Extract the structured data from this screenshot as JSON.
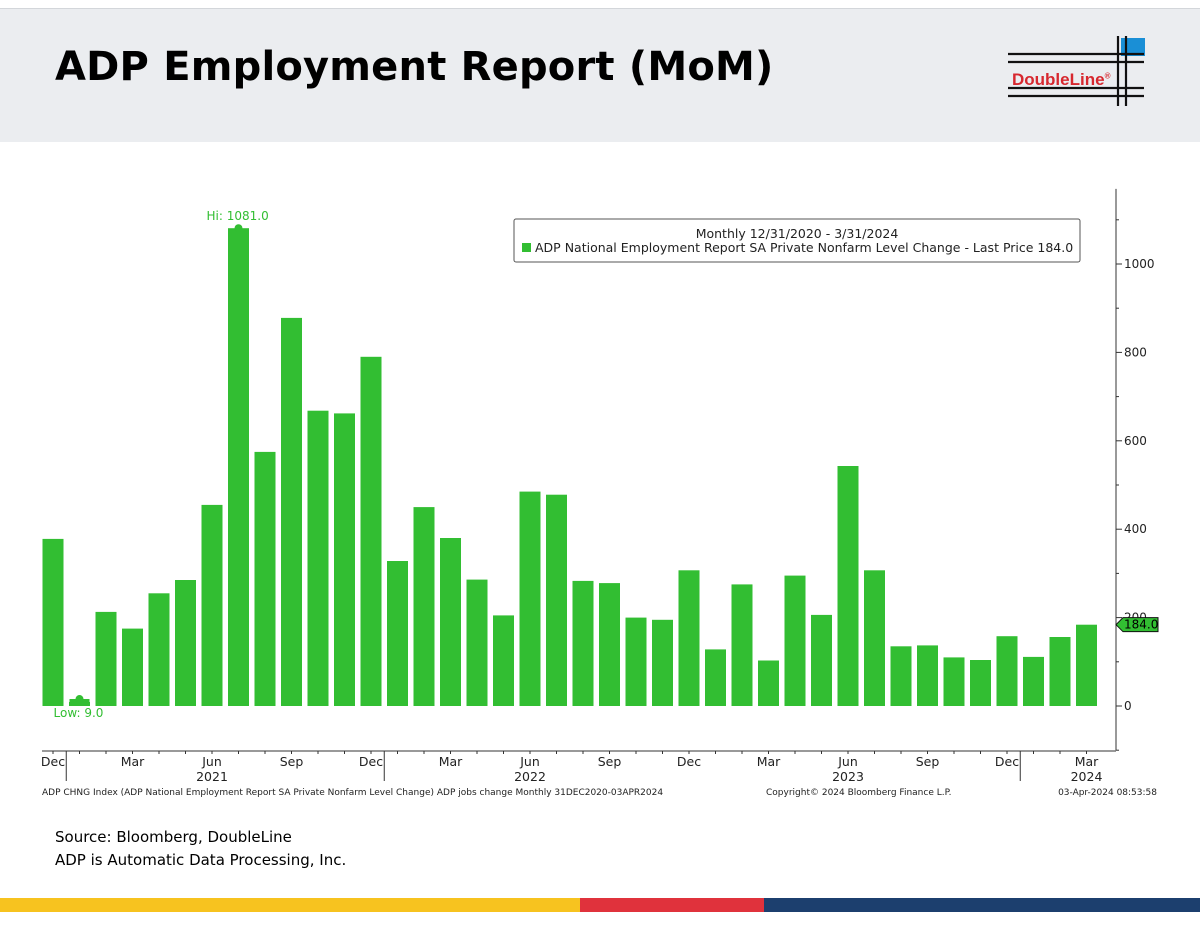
{
  "page": {
    "title": "ADP Employment Report (MoM)",
    "logo_text": "DoubleLine",
    "logo_registered": "®",
    "source_line": "Source: Bloomberg, DoubleLine",
    "note_line": "ADP is Automatic Data Processing, Inc.",
    "colors": {
      "bar": "#32be32",
      "header_bg": "#ebedf0",
      "logo_red": "#d7282f",
      "logo_blue": "#1a8fd6",
      "stripe_yellow": "#f7c31f",
      "stripe_red": "#e0323c",
      "stripe_navy": "#1c3f6e"
    }
  },
  "chart_data": {
    "type": "bar",
    "legend_title": "Monthly 12/31/2020 - 3/31/2024",
    "legend_entry": "ADP National Employment Report SA Private Nonfarm Level Change - Last Price 184.0",
    "categories": [
      "Dec 2020",
      "Jan 2021",
      "Feb 2021",
      "Mar 2021",
      "Apr 2021",
      "May 2021",
      "Jun 2021",
      "Jul 2021",
      "Aug 2021",
      "Sep 2021",
      "Oct 2021",
      "Nov 2021",
      "Dec 2021",
      "Jan 2022",
      "Feb 2022",
      "Mar 2022",
      "Apr 2022",
      "May 2022",
      "Jun 2022",
      "Jul 2022",
      "Aug 2022",
      "Sep 2022",
      "Oct 2022",
      "Nov 2022",
      "Dec 2022",
      "Jan 2023",
      "Feb 2023",
      "Mar 2023",
      "Apr 2023",
      "May 2023",
      "Jun 2023",
      "Jul 2023",
      "Aug 2023",
      "Sep 2023",
      "Oct 2023",
      "Nov 2023",
      "Dec 2023",
      "Jan 2024",
      "Feb 2024",
      "Mar 2024"
    ],
    "values": [
      378,
      9,
      213,
      175,
      255,
      285,
      455,
      1081,
      575,
      878,
      668,
      662,
      790,
      328,
      450,
      380,
      286,
      205,
      485,
      478,
      283,
      278,
      200,
      195,
      307,
      128,
      275,
      103,
      295,
      206,
      543,
      307,
      135,
      137,
      110,
      104,
      158,
      111,
      156,
      184
    ],
    "ylim": [
      -100,
      1170
    ],
    "yticks": [
      0,
      200,
      400,
      600,
      800,
      1000
    ],
    "ytick_labels": [
      "0",
      "200",
      "400",
      "600",
      "800",
      "1000"
    ],
    "xtick_labels": [
      {
        "index": 0,
        "label": "Dec"
      },
      {
        "index": 3,
        "label": "Mar"
      },
      {
        "index": 6,
        "label": "Jun"
      },
      {
        "index": 9,
        "label": "Sep"
      },
      {
        "index": 12,
        "label": "Dec"
      },
      {
        "index": 15,
        "label": "Mar"
      },
      {
        "index": 18,
        "label": "Jun"
      },
      {
        "index": 21,
        "label": "Sep"
      },
      {
        "index": 24,
        "label": "Dec"
      },
      {
        "index": 27,
        "label": "Mar"
      },
      {
        "index": 30,
        "label": "Jun"
      },
      {
        "index": 33,
        "label": "Sep"
      },
      {
        "index": 36,
        "label": "Dec"
      },
      {
        "index": 39,
        "label": "Mar"
      }
    ],
    "year_labels": [
      {
        "index": 6,
        "label": "2021"
      },
      {
        "index": 18,
        "label": "2022"
      },
      {
        "index": 30,
        "label": "2023"
      },
      {
        "index": 39,
        "label": "2024"
      }
    ],
    "year_dividers": [
      0.5,
      12.5,
      36.5
    ],
    "hi": {
      "index": 7,
      "value": 1081.0,
      "label": "Hi: 1081.0"
    },
    "low": {
      "index": 1,
      "value": 9.0,
      "label": "Low: 9.0"
    },
    "last_price_label": "184.0",
    "footer_left": "ADP CHNG Index (ADP National Employment Report SA Private Nonfarm Level Change) ADP jobs change  Monthly 31DEC2020-03APR2024",
    "footer_center": "Copyright© 2024 Bloomberg Finance L.P.",
    "footer_right": "03-Apr-2024 08:53:58"
  }
}
